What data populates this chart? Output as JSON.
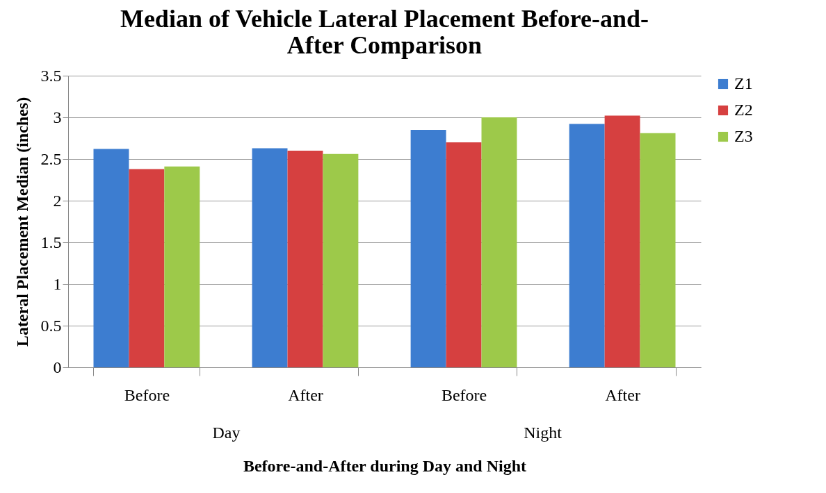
{
  "chart_data": {
    "type": "bar",
    "title": "Median of Vehicle Lateral Placement Before-and-After Comparison",
    "xlabel": "Before-and-After during Day and Night",
    "ylabel": "Lateral Placement Median (inches)",
    "categories": [
      "Before",
      "After",
      "Before",
      "After"
    ],
    "annotations": [
      "Day",
      "Night"
    ],
    "series": [
      {
        "name": "Z1",
        "color": "#3d7dd0",
        "values": [
          2.62,
          2.63,
          2.85,
          2.92
        ]
      },
      {
        "name": "Z2",
        "color": "#d64040",
        "values": [
          2.38,
          2.6,
          2.7,
          3.02
        ]
      },
      {
        "name": "Z3",
        "color": "#9dc94a",
        "values": [
          2.41,
          2.56,
          3.0,
          2.81
        ]
      }
    ],
    "ylim": [
      0,
      3.5
    ],
    "yticks": [
      0,
      0.5,
      1,
      1.5,
      2,
      2.5,
      3,
      3.5
    ],
    "grid": "y",
    "legend": "right"
  }
}
